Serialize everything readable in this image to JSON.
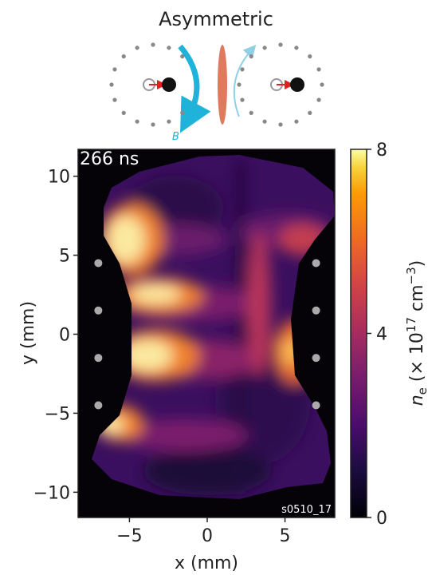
{
  "title": "Asymmetric",
  "diagram": {
    "field_label": "B"
  },
  "chart_data": {
    "type": "heatmap",
    "time_label": "266 ns",
    "shot_label": "s0510_17",
    "xlabel": "x (mm)",
    "ylabel": "y (mm)",
    "xlim": [
      -8.3,
      8.2
    ],
    "ylim": [
      -11.6,
      11.7
    ],
    "xticks": [
      {
        "value": -5,
        "label": "−5"
      },
      0,
      5
    ],
    "yticks": [
      {
        "value": -10,
        "label": "−10"
      },
      {
        "value": -5,
        "label": "−5"
      },
      0,
      5,
      10
    ],
    "colormap": "inferno",
    "clim": [
      0,
      8
    ],
    "cticks": [
      0,
      4,
      8
    ],
    "colorbar_label": [
      "n",
      "e",
      " (× 10",
      "17",
      " cm",
      "−3",
      ")"
    ],
    "electrodes": {
      "x": [
        -7,
        7
      ],
      "y": [
        4.5,
        1.5,
        -1.5,
        -4.5
      ],
      "color": "#aaaaaa"
    }
  }
}
